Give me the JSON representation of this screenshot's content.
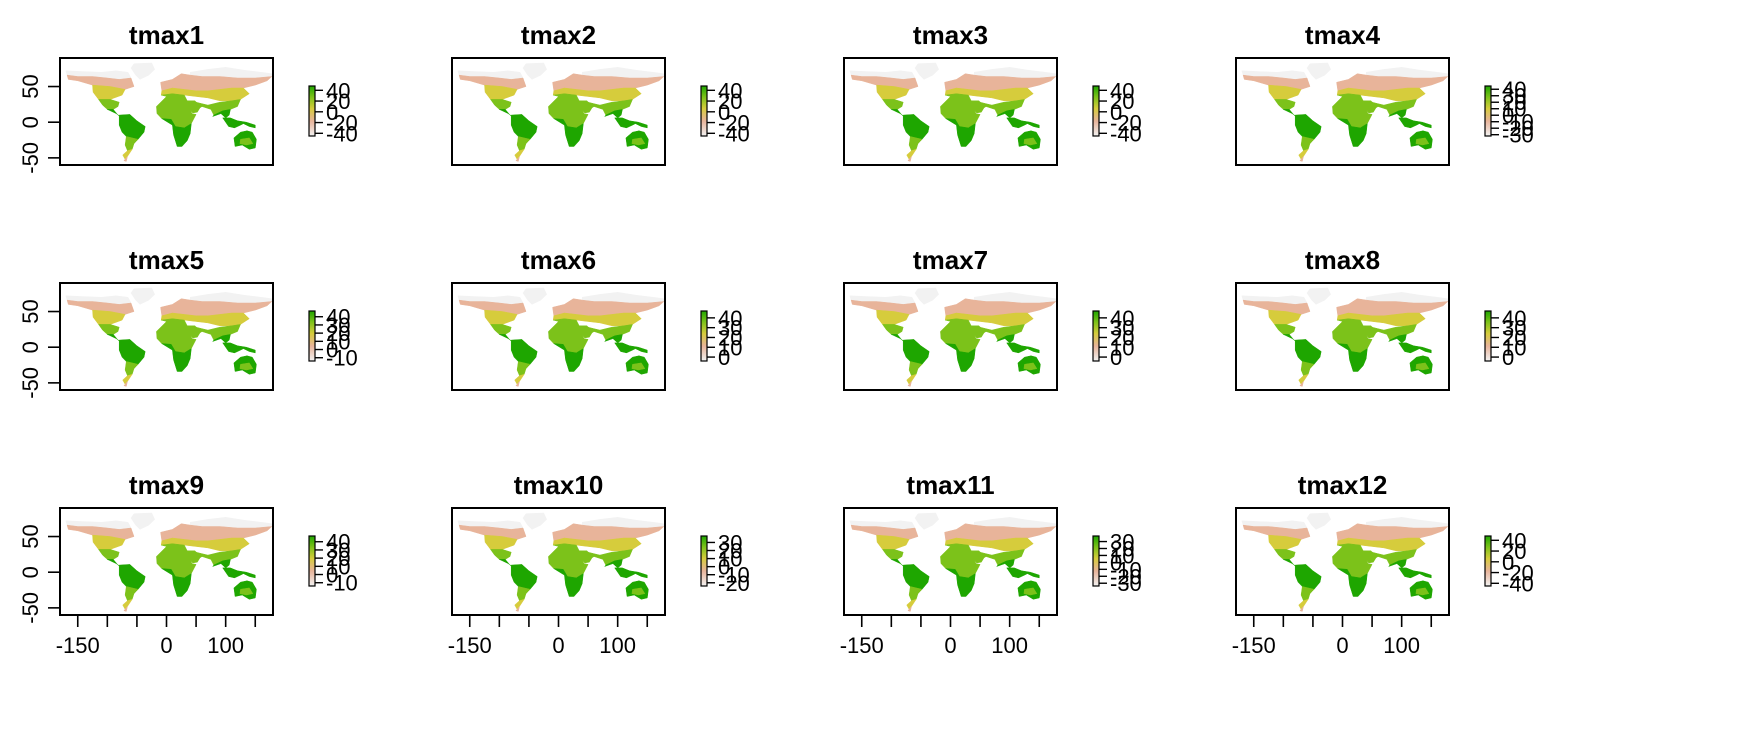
{
  "figure": {
    "panels": [
      {
        "title": "tmax1",
        "legend": {
          "min": -45,
          "max": 48,
          "ticks": [
            40,
            20,
            0,
            -20,
            -40
          ]
        }
      },
      {
        "title": "tmax2",
        "legend": {
          "min": -45,
          "max": 48,
          "ticks": [
            40,
            20,
            0,
            -20,
            -40
          ]
        }
      },
      {
        "title": "tmax3",
        "legend": {
          "min": -45,
          "max": 48,
          "ticks": [
            40,
            20,
            0,
            -20,
            -40
          ]
        }
      },
      {
        "title": "tmax4",
        "legend": {
          "min": -32,
          "max": 45,
          "ticks": [
            40,
            30,
            20,
            10,
            0,
            -10,
            -20,
            -30
          ]
        }
      },
      {
        "title": "tmax5",
        "legend": {
          "min": -14,
          "max": 47,
          "ticks": [
            40,
            30,
            20,
            10,
            0,
            -10
          ]
        }
      },
      {
        "title": "tmax6",
        "legend": {
          "min": -4,
          "max": 47,
          "ticks": [
            40,
            30,
            20,
            10,
            0
          ]
        }
      },
      {
        "title": "tmax7",
        "legend": {
          "min": -4,
          "max": 47,
          "ticks": [
            40,
            30,
            20,
            10,
            0
          ]
        }
      },
      {
        "title": "tmax8",
        "legend": {
          "min": -4,
          "max": 47,
          "ticks": [
            40,
            30,
            20,
            10,
            0
          ]
        }
      },
      {
        "title": "tmax9",
        "legend": {
          "min": -14,
          "max": 47,
          "ticks": [
            40,
            30,
            20,
            10,
            0,
            -10
          ]
        }
      },
      {
        "title": "tmax10",
        "legend": {
          "min": -24,
          "max": 38,
          "ticks": [
            30,
            20,
            10,
            0,
            -10,
            -20
          ]
        }
      },
      {
        "title": "tmax11",
        "legend": {
          "min": -34,
          "max": 38,
          "ticks": [
            30,
            20,
            10,
            0,
            -10,
            -20,
            -30
          ]
        }
      },
      {
        "title": "tmax12",
        "legend": {
          "min": -45,
          "max": 48,
          "ticks": [
            40,
            20,
            0,
            -20,
            -40
          ]
        }
      }
    ],
    "y_ticks": [
      50,
      0,
      -50
    ],
    "x_ticks": [
      -150,
      -100,
      -50,
      0,
      50,
      100,
      150
    ],
    "x_tick_labels": [
      {
        "value": -150,
        "text": "-150"
      },
      {
        "value": 0,
        "text": "0"
      },
      {
        "value": 100,
        "text": "100"
      }
    ],
    "xlim": [
      -180,
      180
    ],
    "ylim": [
      -60,
      90
    ],
    "colors": {
      "cold": "#f2f2f2",
      "cool": "#e8b49a",
      "mild": "#d6cc3c",
      "warm": "#7cc21a",
      "hot": "#1ea600"
    }
  }
}
